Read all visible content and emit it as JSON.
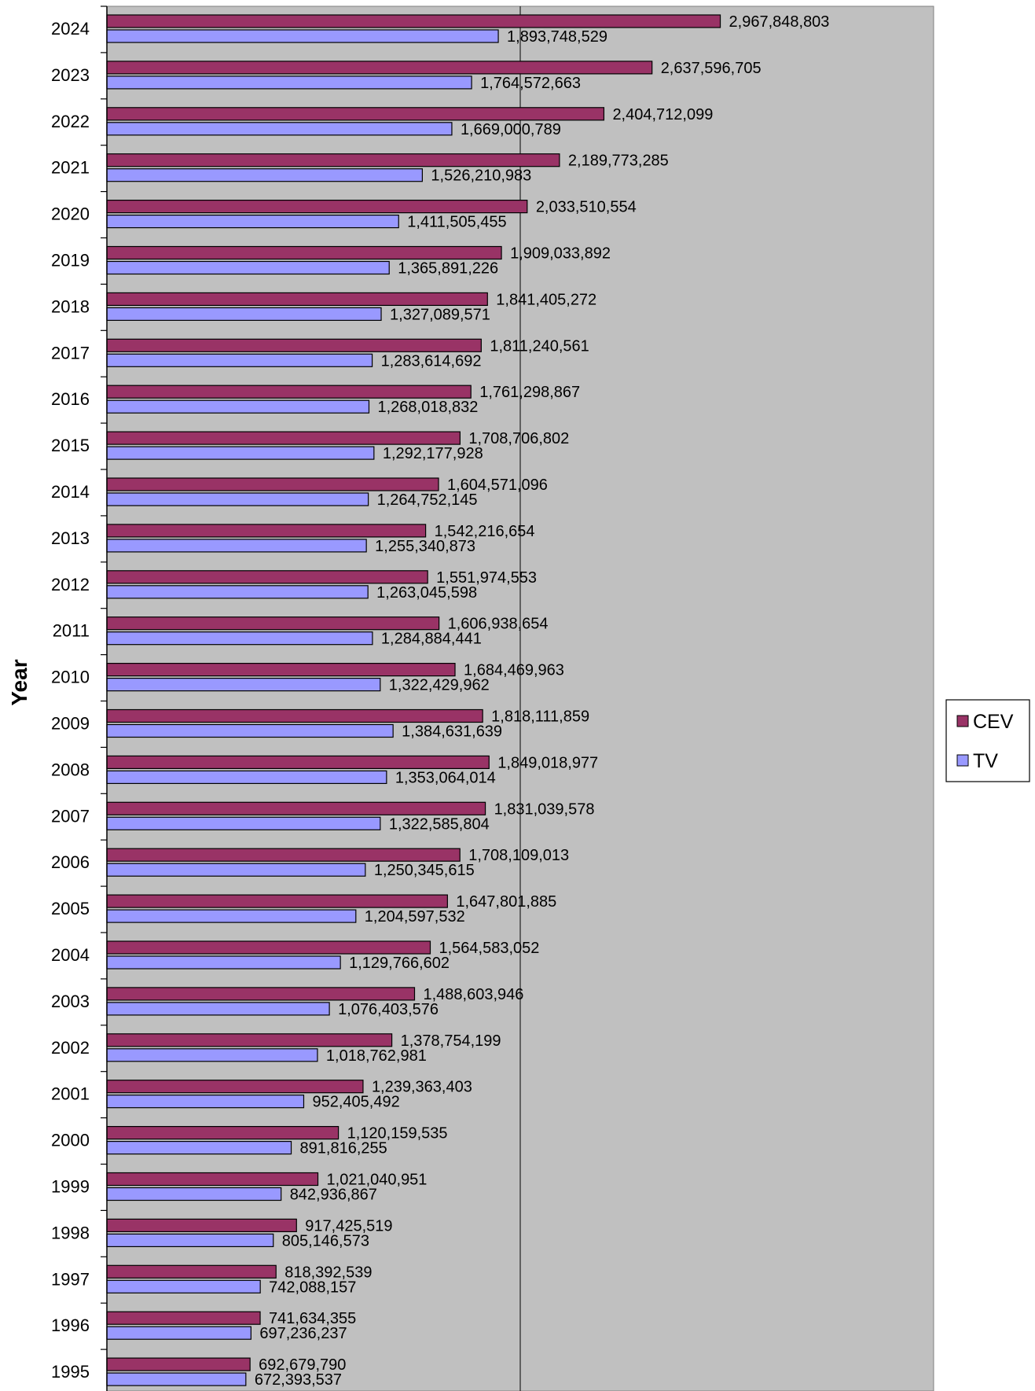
{
  "chart_data": {
    "type": "bar",
    "orientation": "horizontal",
    "title": "",
    "ylabel": "Year",
    "xlabel": "",
    "categories": [
      "2024",
      "2023",
      "2022",
      "2021",
      "2020",
      "2019",
      "2018",
      "2017",
      "2016",
      "2015",
      "2014",
      "2013",
      "2012",
      "2011",
      "2010",
      "2009",
      "2008",
      "2007",
      "2006",
      "2005",
      "2004",
      "2003",
      "2002",
      "2001",
      "2000",
      "1999",
      "1998",
      "1997",
      "1996",
      "1995"
    ],
    "series": [
      {
        "name": "CEV",
        "color": "#993366",
        "values": [
          2967848803,
          2637596705,
          2404712099,
          2189773285,
          2033510554,
          1909033892,
          1841405272,
          1811240561,
          1761298867,
          1708706802,
          1604571096,
          1542216654,
          1551974553,
          1606938654,
          1684469963,
          1818111859,
          1849018977,
          1831039578,
          1708109013,
          1647801885,
          1564583052,
          1488603946,
          1378754199,
          1239363403,
          1120159535,
          1021040951,
          917425519,
          818392539,
          741634355,
          692679790
        ],
        "labels": [
          "2,967,848,803",
          "2,637,596,705",
          "2,404,712,099",
          "2,189,773,285",
          "2,033,510,554",
          "1,909,033,892",
          "1,841,405,272",
          "1,811,240,561",
          "1,761,298,867",
          "1,708,706,802",
          "1,604,571,096",
          "1,542,216,654",
          "1,551,974,553",
          "1,606,938,654",
          "1,684,469,963",
          "1,818,111,859",
          "1,849,018,977",
          "1,831,039,578",
          "1,708,109,013",
          "1,647,801,885",
          "1,564,583,052",
          "1,488,603,946",
          "1,378,754,199",
          "1,239,363,403",
          "1,120,159,535",
          "1,021,040,951",
          "917,425,519",
          "818,392,539",
          "741,634,355",
          "692,679,790"
        ]
      },
      {
        "name": "TV",
        "color": "#9999ff",
        "values": [
          1893748529,
          1764572663,
          1669000789,
          1526210983,
          1411505455,
          1365891226,
          1327089571,
          1283614692,
          1268018832,
          1292177928,
          1264752145,
          1255340873,
          1263045598,
          1284884441,
          1322429962,
          1384631639,
          1353064014,
          1322585804,
          1250345615,
          1204597532,
          1129766602,
          1076403576,
          1018762981,
          952405492,
          891816255,
          842936867,
          805146573,
          742088157,
          697236237,
          672393537
        ],
        "labels": [
          "1,893,748,529",
          "1,764,572,663",
          "1,669,000,789",
          "1,526,210,983",
          "1,411,505,455",
          "1,365,891,226",
          "1,327,089,571",
          "1,283,614,692",
          "1,268,018,832",
          "1,292,177,928",
          "1,264,752,145",
          "1,255,340,873",
          "1,263,045,598",
          "1,284,884,441",
          "1,322,429,962",
          "1,384,631,639",
          "1,353,064,014",
          "1,322,585,804",
          "1,250,345,615",
          "1,204,597,532",
          "1,129,766,602",
          "1,076,403,576",
          "1,018,762,981",
          "952,405,492",
          "891,816,255",
          "842,936,867",
          "805,146,573",
          "742,088,157",
          "697,236,237",
          "672,393,537"
        ]
      }
    ],
    "xlim": [
      0,
      4000000000
    ],
    "gridlines_x": [
      2000000000
    ],
    "plot_background": "#c0c0c0",
    "legend_position": "right"
  }
}
